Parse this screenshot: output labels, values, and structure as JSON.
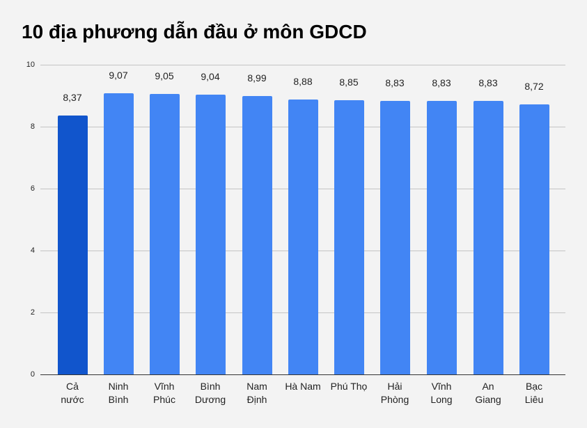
{
  "title": "10 địa phương dẫn đầu ở môn GDCD",
  "colors": {
    "background": "#f3f3f3",
    "bar": "#4285f4",
    "bar_highlight": "#1155cc",
    "gridline": "#c4c4c4"
  },
  "y_ticks": [
    "0",
    "2",
    "4",
    "6",
    "8",
    "10"
  ],
  "bars": [
    {
      "label_line1": "Cả",
      "label_line2": "nước",
      "value": "8,37",
      "highlight": true
    },
    {
      "label_line1": "Ninh",
      "label_line2": "Bình",
      "value": "9,07"
    },
    {
      "label_line1": "Vĩnh",
      "label_line2": "Phúc",
      "value": "9,05"
    },
    {
      "label_line1": "Bình",
      "label_line2": "Dương",
      "value": "9,04"
    },
    {
      "label_line1": "Nam",
      "label_line2": "Định",
      "value": "8,99"
    },
    {
      "label_line1": "Hà Nam",
      "label_line2": "",
      "value": "8,88"
    },
    {
      "label_line1": "Phú Thọ",
      "label_line2": "",
      "value": "8,85"
    },
    {
      "label_line1": "Hải",
      "label_line2": "Phòng",
      "value": "8,83"
    },
    {
      "label_line1": "Vĩnh",
      "label_line2": "Long",
      "value": "8,83"
    },
    {
      "label_line1": "An",
      "label_line2": "Giang",
      "value": "8,83"
    },
    {
      "label_line1": "Bạc",
      "label_line2": "Liêu",
      "value": "8,72"
    }
  ],
  "chart_data": {
    "type": "bar",
    "title": "10 địa phương dẫn đầu ở môn GDCD",
    "categories": [
      "Cả nước",
      "Ninh Bình",
      "Vĩnh Phúc",
      "Bình Dương",
      "Nam Định",
      "Hà Nam",
      "Phú Thọ",
      "Hải Phòng",
      "Vĩnh Long",
      "An Giang",
      "Bạc Liêu"
    ],
    "values": [
      8.37,
      9.07,
      9.05,
      9.04,
      8.99,
      8.88,
      8.85,
      8.83,
      8.83,
      8.83,
      8.72
    ],
    "data_labels": [
      "8,37",
      "9,07",
      "9,05",
      "9,04",
      "8,99",
      "8,88",
      "8,85",
      "8,83",
      "8,83",
      "8,83",
      "8,72"
    ],
    "xlabel": "",
    "ylabel": "",
    "ylim": [
      0,
      10
    ],
    "yticks": [
      0,
      2,
      4,
      6,
      8,
      10
    ],
    "grid": true,
    "legend": "none",
    "highlighted_category": "Cả nước"
  }
}
